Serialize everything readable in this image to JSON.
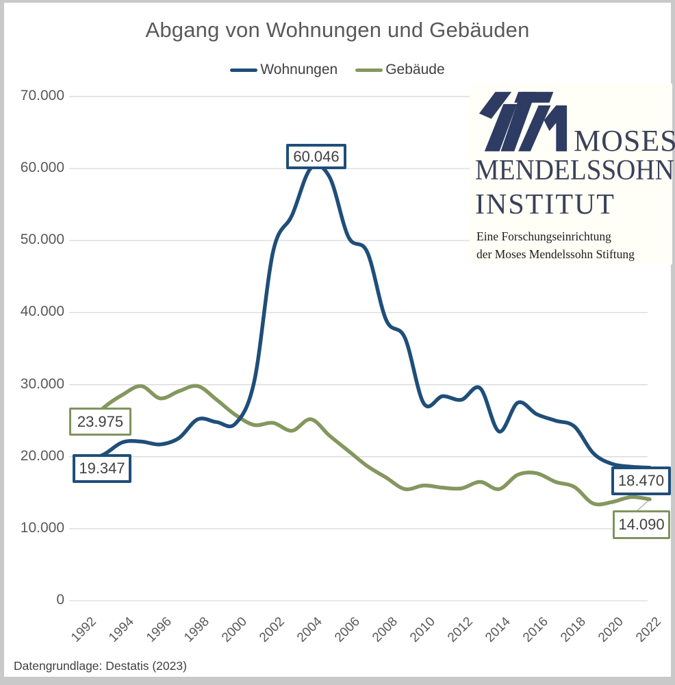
{
  "title": "Abgang von Wohnungen und Gebäuden",
  "legend": [
    {
      "label": "Wohnungen",
      "color": "#1f4e79"
    },
    {
      "label": "Gebäude",
      "color": "#84975f"
    }
  ],
  "footer": "Datengrundlage: Destatis (2023)",
  "logo": {
    "line1": "MOSES",
    "line2": "MENDELSSOHN",
    "line3": "INSTITUT",
    "sub1": "Eine Forschungseinrichtung",
    "sub2": "der Moses Mendelssohn Stiftung",
    "glyph_color": "#2e3c63"
  },
  "chart_data": {
    "type": "line",
    "x": [
      1992,
      1993,
      1994,
      1995,
      1996,
      1997,
      1998,
      1999,
      2000,
      2001,
      2002,
      2003,
      2004,
      2005,
      2006,
      2007,
      2008,
      2009,
      2010,
      2011,
      2012,
      2013,
      2014,
      2015,
      2016,
      2017,
      2018,
      2019,
      2020,
      2021,
      2022
    ],
    "series": [
      {
        "name": "Wohnungen",
        "color": "#1f4e79",
        "values": [
          19347,
          20300,
          22000,
          22100,
          21700,
          22600,
          25200,
          24800,
          24600,
          30500,
          48500,
          53500,
          60046,
          58800,
          50500,
          48400,
          39000,
          36500,
          27400,
          28400,
          27900,
          29500,
          23500,
          27500,
          25900,
          25000,
          24200,
          20500,
          19000,
          18600,
          18470
        ]
      },
      {
        "name": "Gebäude",
        "color": "#84975f",
        "values": [
          23975,
          26800,
          28600,
          29800,
          28100,
          29100,
          29800,
          27900,
          25800,
          24400,
          24700,
          23600,
          25200,
          22900,
          20800,
          18700,
          17100,
          15500,
          16000,
          15700,
          15600,
          16500,
          15500,
          17500,
          17700,
          16500,
          15800,
          13500,
          13700,
          14400,
          14090
        ]
      }
    ],
    "ylim": [
      0,
      70000
    ],
    "ytick_labels": [
      "0",
      "10.000",
      "20.000",
      "30.000",
      "40.000",
      "50.000",
      "60.000",
      "70.000"
    ],
    "xticks": [
      1992,
      1994,
      1996,
      1998,
      2000,
      2002,
      2004,
      2006,
      2008,
      2010,
      2012,
      2014,
      2016,
      2018,
      2020,
      2022
    ],
    "grid": true,
    "legend_position": "top",
    "annotations": [
      {
        "series": "Gebäude",
        "year": 1992,
        "label": "23.975"
      },
      {
        "series": "Wohnungen",
        "year": 1992,
        "label": "19.347"
      },
      {
        "series": "Wohnungen",
        "year": 2004,
        "label": "60.046"
      },
      {
        "series": "Wohnungen",
        "year": 2022,
        "label": "18.470"
      },
      {
        "series": "Gebäude",
        "year": 2022,
        "label": "14.090"
      }
    ]
  }
}
